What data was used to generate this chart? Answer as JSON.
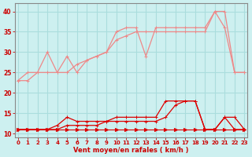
{
  "bg_color": "#cdf0f0",
  "grid_color": "#aadddd",
  "xlabel": "Vent moyen/en rafales ( km/h )",
  "xlabel_color": "#cc0000",
  "tick_color": "#cc0000",
  "x_ticks": [
    0,
    1,
    2,
    3,
    4,
    5,
    6,
    7,
    8,
    9,
    10,
    11,
    12,
    13,
    14,
    15,
    16,
    17,
    18,
    19,
    20,
    21,
    22,
    23
  ],
  "ylim": [
    9,
    42
  ],
  "xlim": [
    -0.3,
    23.3
  ],
  "yticks": [
    10,
    15,
    20,
    25,
    30,
    35,
    40
  ],
  "lines": [
    {
      "label": "flat_arrow",
      "x": [
        0,
        1,
        2,
        3,
        4,
        5,
        6,
        7,
        8,
        9,
        10,
        11,
        12,
        13,
        14,
        15,
        16,
        17,
        18,
        19,
        20,
        21,
        22,
        23
      ],
      "y": [
        11,
        11,
        11,
        11,
        11,
        11,
        11,
        11,
        11,
        11,
        11,
        11,
        11,
        11,
        11,
        11,
        11,
        11,
        11,
        11,
        11,
        11,
        11,
        11
      ],
      "color": "#dd0000",
      "lw": 0.8,
      "marker": ">",
      "ms": 3
    },
    {
      "label": "lower_upper",
      "x": [
        0,
        1,
        2,
        3,
        4,
        5,
        6,
        7,
        8,
        9,
        10,
        11,
        12,
        13,
        14,
        15,
        16,
        17,
        18,
        19,
        20,
        21,
        22,
        23
      ],
      "y": [
        11,
        11,
        11,
        11,
        12,
        14,
        13,
        13,
        13,
        13,
        14,
        14,
        14,
        14,
        14,
        18,
        18,
        18,
        18,
        11,
        11,
        14,
        14,
        11
      ],
      "color": "#dd0000",
      "lw": 0.9,
      "marker": "+",
      "ms": 3
    },
    {
      "label": "lower_mean",
      "x": [
        0,
        1,
        2,
        3,
        4,
        5,
        6,
        7,
        8,
        9,
        10,
        11,
        12,
        13,
        14,
        15,
        16,
        17,
        18,
        19,
        20,
        21,
        22,
        23
      ],
      "y": [
        11,
        11,
        11,
        11,
        11,
        12,
        12,
        12,
        12,
        13,
        13,
        13,
        13,
        13,
        13,
        14,
        17,
        18,
        18,
        11,
        11,
        14,
        11,
        11
      ],
      "color": "#dd0000",
      "lw": 0.9,
      "marker": "+",
      "ms": 3
    },
    {
      "label": "upper_gust",
      "x": [
        0,
        1,
        2,
        3,
        4,
        5,
        6,
        7,
        8,
        9,
        10,
        11,
        12,
        13,
        14,
        15,
        16,
        17,
        18,
        19,
        20,
        21,
        22,
        23
      ],
      "y": [
        23,
        25,
        25,
        30,
        25,
        29,
        25,
        28,
        29,
        30,
        35,
        36,
        36,
        29,
        36,
        36,
        36,
        36,
        36,
        36,
        40,
        40,
        25,
        25
      ],
      "color": "#ee8888",
      "lw": 0.9,
      "marker": "+",
      "ms": 3
    },
    {
      "label": "lower_gust",
      "x": [
        0,
        1,
        2,
        3,
        4,
        5,
        6,
        7,
        8,
        9,
        10,
        11,
        12,
        13,
        14,
        15,
        16,
        17,
        18,
        19,
        20,
        21,
        22,
        23
      ],
      "y": [
        23,
        23,
        25,
        25,
        25,
        25,
        27,
        28,
        29,
        30,
        33,
        34,
        35,
        35,
        35,
        35,
        35,
        35,
        35,
        35,
        40,
        36,
        25,
        25
      ],
      "color": "#ee8888",
      "lw": 0.9,
      "marker": "+",
      "ms": 3
    }
  ]
}
